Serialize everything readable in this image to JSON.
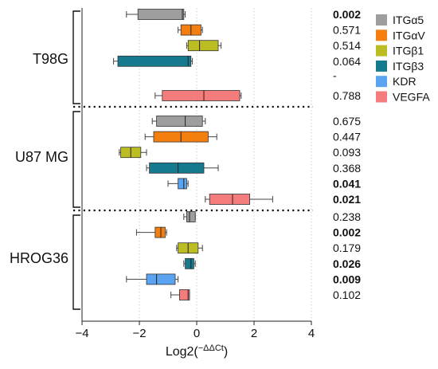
{
  "chart_data": {
    "type": "box",
    "orientation": "horizontal",
    "xlabel": "Log2(",
    "xlabel_sup": "−ΔΔCt",
    "xlabel_close": ")",
    "xlim": [
      -4,
      4
    ],
    "xticks": [
      -4,
      -2,
      0,
      2,
      4
    ],
    "grid": "vertical dotted",
    "legend_position": "top-right",
    "series": [
      {
        "name": "ITGα5",
        "color": "#9e9e9e"
      },
      {
        "name": "ITGαV",
        "color": "#f57f0e"
      },
      {
        "name": "ITGβ1",
        "color": "#bcbd22"
      },
      {
        "name": "ITGβ3",
        "color": "#157a8e"
      },
      {
        "name": "KDR",
        "color": "#5aa3f0"
      },
      {
        "name": "VEGFA",
        "color": "#f47c7c"
      }
    ],
    "groups": [
      {
        "name": "T98G",
        "rows": [
          {
            "series": 0,
            "whisker": [
              -2.45,
              -0.4
            ],
            "box": [
              -2.05,
              -0.45
            ],
            "median": -0.5,
            "p": "0.002",
            "sig": true
          },
          {
            "series": 1,
            "whisker": [
              -0.65,
              0.2
            ],
            "box": [
              -0.55,
              0.15
            ],
            "median": -0.2,
            "p": "0.571",
            "sig": false
          },
          {
            "series": 2,
            "whisker": [
              -0.35,
              0.85
            ],
            "box": [
              -0.3,
              0.75
            ],
            "median": 0.1,
            "p": "0.514",
            "sig": false
          },
          {
            "series": 3,
            "whisker": [
              -2.9,
              -0.15
            ],
            "box": [
              -2.75,
              -0.2
            ],
            "median": -0.3,
            "p": "0.064",
            "sig": false
          },
          {
            "series": 4,
            "whisker": null,
            "box": null,
            "median": null,
            "p": "-",
            "sig": false
          },
          {
            "series": 5,
            "whisker": [
              -1.45,
              1.55
            ],
            "box": [
              -1.2,
              1.5
            ],
            "median": 0.25,
            "p": "0.788",
            "sig": false
          }
        ]
      },
      {
        "name": "U87 MG",
        "rows": [
          {
            "series": 0,
            "whisker": [
              -1.55,
              0.3
            ],
            "box": [
              -1.4,
              0.2
            ],
            "median": -0.4,
            "p": "0.675",
            "sig": false
          },
          {
            "series": 1,
            "whisker": [
              -1.8,
              0.7
            ],
            "box": [
              -1.5,
              0.4
            ],
            "median": -0.55,
            "p": "0.447",
            "sig": false
          },
          {
            "series": 2,
            "whisker": [
              -2.7,
              -1.75
            ],
            "box": [
              -2.65,
              -1.95
            ],
            "median": -2.3,
            "p": "0.093",
            "sig": false
          },
          {
            "series": 3,
            "whisker": [
              -1.75,
              0.75
            ],
            "box": [
              -1.65,
              0.25
            ],
            "median": -0.65,
            "p": "0.368",
            "sig": false
          },
          {
            "series": 4,
            "whisker": [
              -1.0,
              -0.3
            ],
            "box": [
              -0.65,
              -0.35
            ],
            "median": -0.45,
            "p": "0.041",
            "sig": true
          },
          {
            "series": 5,
            "whisker": [
              0.3,
              2.65
            ],
            "box": [
              0.45,
              1.85
            ],
            "median": 1.25,
            "p": "0.021",
            "sig": true
          }
        ]
      },
      {
        "name": "HROG36",
        "rows": [
          {
            "series": 0,
            "whisker": [
              -0.45,
              -0.05
            ],
            "box": [
              -0.35,
              -0.05
            ],
            "median": -0.25,
            "p": "0.238",
            "sig": false
          },
          {
            "series": 1,
            "whisker": [
              -2.1,
              -1.05
            ],
            "box": [
              -1.45,
              -1.1
            ],
            "median": -1.25,
            "p": "0.002",
            "sig": true
          },
          {
            "series": 2,
            "whisker": [
              -0.7,
              0.2
            ],
            "box": [
              -0.65,
              0.05
            ],
            "median": -0.3,
            "p": "0.179",
            "sig": false
          },
          {
            "series": 3,
            "whisker": [
              -0.45,
              -0.05
            ],
            "box": [
              -0.4,
              -0.1
            ],
            "median": -0.2,
            "p": "0.026",
            "sig": true
          },
          {
            "series": 4,
            "whisker": [
              -2.45,
              -0.65
            ],
            "box": [
              -1.75,
              -0.75
            ],
            "median": -1.4,
            "p": "0.009",
            "sig": true
          },
          {
            "series": 5,
            "whisker": [
              -0.9,
              -0.25
            ],
            "box": [
              -0.6,
              -0.25
            ],
            "median": -0.3,
            "p": "0.102",
            "sig": false
          }
        ]
      }
    ]
  }
}
